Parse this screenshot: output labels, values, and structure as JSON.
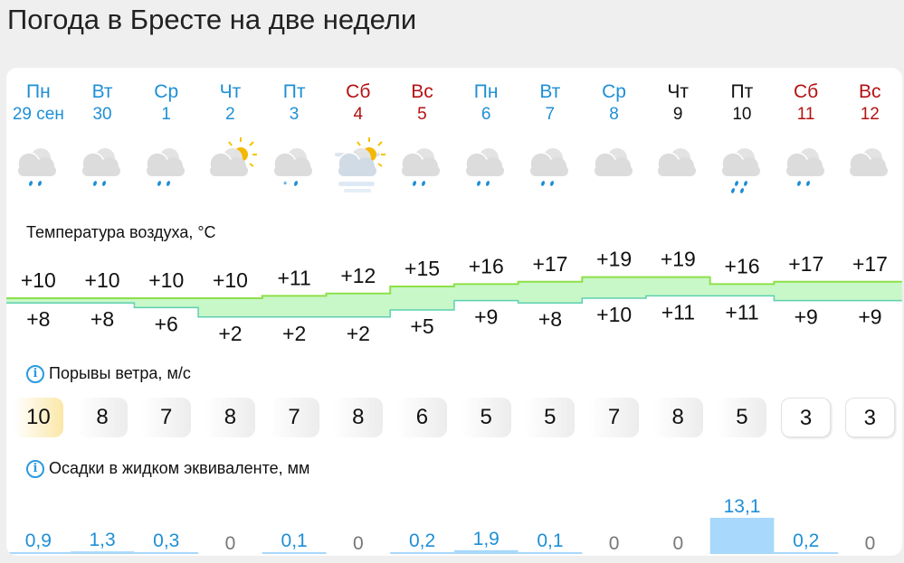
{
  "title": "Погода в Бресте на две недели",
  "days": [
    {
      "dow": "Пн",
      "date": "29 сен",
      "color": "blue",
      "icon": "cloud-rain",
      "tmax": "+10",
      "tmin": "+8",
      "max": 10,
      "min": 8,
      "wind": "10",
      "precip": "0,9",
      "p": 0.9
    },
    {
      "dow": "Вт",
      "date": "30",
      "color": "blue",
      "icon": "cloud-rain",
      "tmax": "+10",
      "tmin": "+8",
      "max": 10,
      "min": 8,
      "wind": "8",
      "precip": "1,3",
      "p": 1.3
    },
    {
      "dow": "Ср",
      "date": "1",
      "color": "blue",
      "icon": "cloud-rain",
      "tmax": "+10",
      "tmin": "+6",
      "max": 10,
      "min": 6,
      "wind": "7",
      "precip": "0,3",
      "p": 0.3
    },
    {
      "dow": "Чт",
      "date": "2",
      "color": "blue",
      "icon": "cloud-sun",
      "tmax": "+10",
      "tmin": "+2",
      "max": 10,
      "min": 2,
      "wind": "8",
      "precip": "0",
      "p": 0
    },
    {
      "dow": "Пт",
      "date": "3",
      "color": "blue",
      "icon": "cloud-snow-rain",
      "tmax": "+11",
      "tmin": "+2",
      "max": 11,
      "min": 2,
      "wind": "7",
      "precip": "0,1",
      "p": 0.1
    },
    {
      "dow": "Сб",
      "date": "4",
      "color": "red",
      "icon": "fog-sun",
      "tmax": "+12",
      "tmin": "+2",
      "max": 12,
      "min": 2,
      "wind": "8",
      "precip": "0",
      "p": 0
    },
    {
      "dow": "Вс",
      "date": "5",
      "color": "red",
      "icon": "cloud-rain",
      "tmax": "+15",
      "tmin": "+5",
      "max": 15,
      "min": 5,
      "wind": "6",
      "precip": "0,2",
      "p": 0.2
    },
    {
      "dow": "Пн",
      "date": "6",
      "color": "blue",
      "icon": "cloud-rain",
      "tmax": "+16",
      "tmin": "+9",
      "max": 16,
      "min": 9,
      "wind": "5",
      "precip": "1,9",
      "p": 1.9
    },
    {
      "dow": "Вт",
      "date": "7",
      "color": "blue",
      "icon": "cloud-rain",
      "tmax": "+17",
      "tmin": "+8",
      "max": 17,
      "min": 8,
      "wind": "5",
      "precip": "0,1",
      "p": 0.1
    },
    {
      "dow": "Ср",
      "date": "8",
      "color": "blue",
      "icon": "cloud",
      "tmax": "+19",
      "tmin": "+10",
      "max": 19,
      "min": 10,
      "wind": "7",
      "precip": "0",
      "p": 0
    },
    {
      "dow": "Чт",
      "date": "9",
      "color": "black",
      "icon": "cloud",
      "tmax": "+19",
      "tmin": "+11",
      "max": 19,
      "min": 11,
      "wind": "8",
      "precip": "0",
      "p": 0
    },
    {
      "dow": "Пт",
      "date": "10",
      "color": "black",
      "icon": "cloud-heavy-rain",
      "tmax": "+16",
      "tmin": "+11",
      "max": 16,
      "min": 11,
      "wind": "5",
      "precip": "13,1",
      "p": 13.1
    },
    {
      "dow": "Сб",
      "date": "11",
      "color": "red",
      "icon": "cloud-rain",
      "tmax": "+17",
      "tmin": "+9",
      "max": 17,
      "min": 9,
      "wind": "3",
      "precip": "0,2",
      "p": 0.2
    },
    {
      "dow": "Вс",
      "date": "12",
      "color": "red",
      "icon": "cloud",
      "tmax": "+17",
      "tmin": "+9",
      "max": 17,
      "min": 9,
      "wind": "3",
      "precip": "0",
      "p": 0
    }
  ],
  "temp_label": "Температура воздуха, °C",
  "wind_label": "Порывы ветра, м/с",
  "precip_label": "Осадки в жидком эквиваленте, мм",
  "colors": {
    "weekday": "#1e8fd6",
    "weekend": "#b41212",
    "band": "#c8f7c8",
    "line": "#8ee04a",
    "precip": "#a8d8fb"
  }
}
